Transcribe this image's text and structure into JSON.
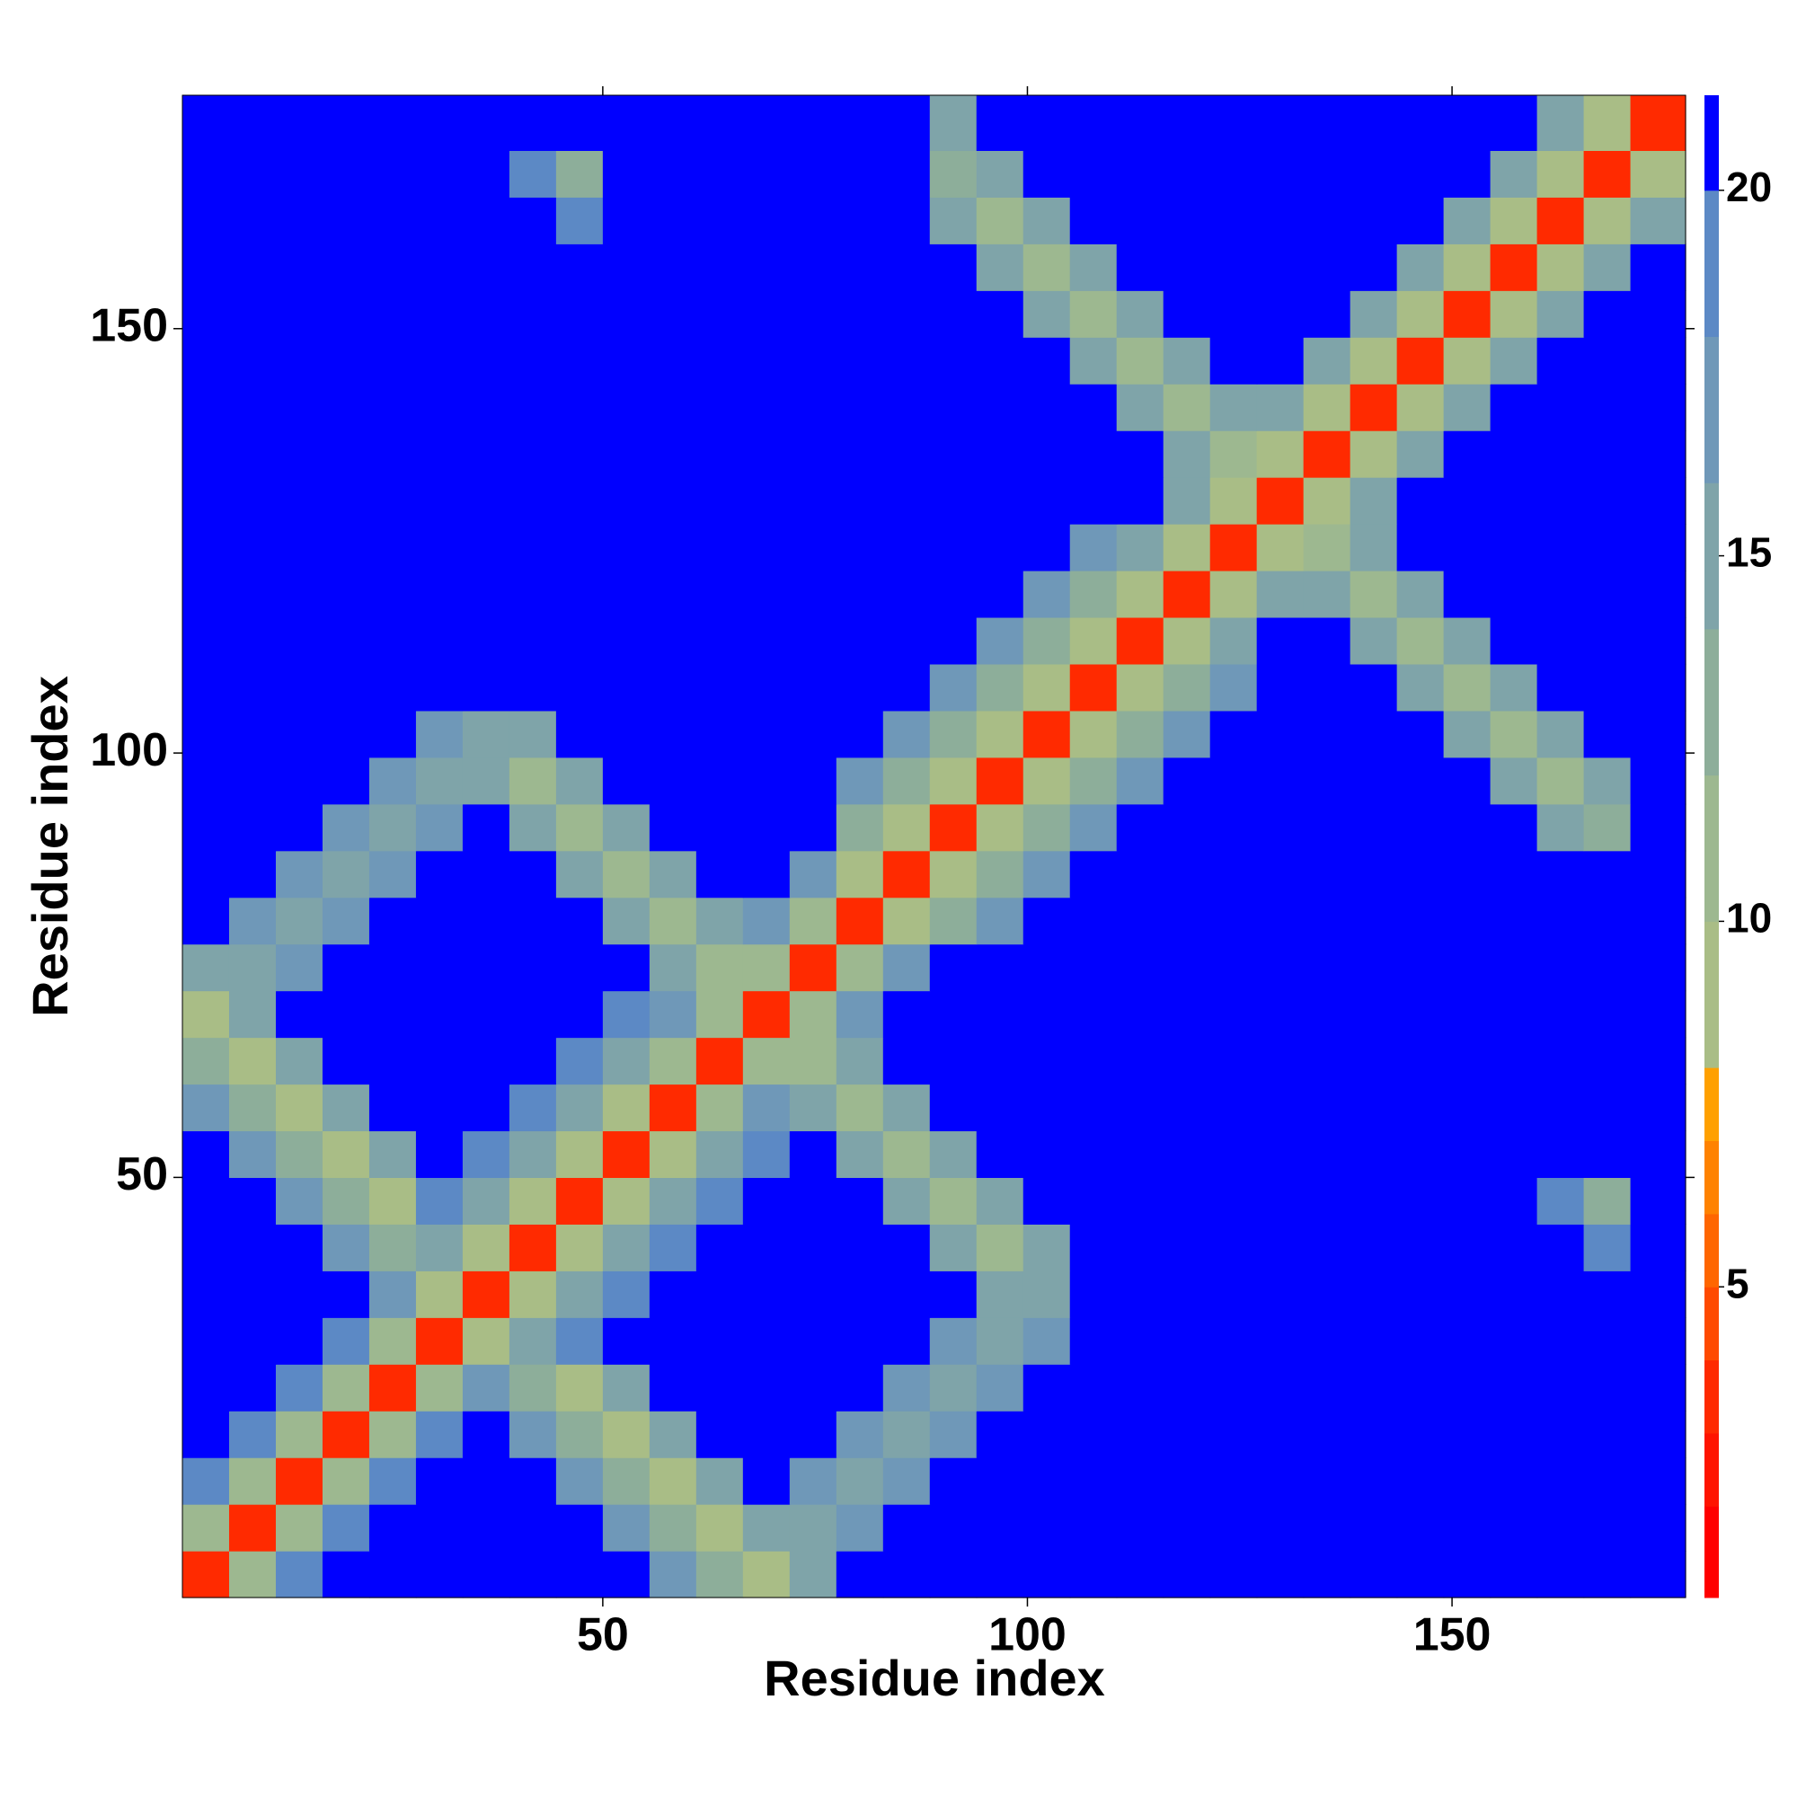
{
  "chart_data": {
    "type": "heatmap",
    "xlabel": "Residue index",
    "ylabel": "Residue index",
    "x_bins": [
      0.5,
      6,
      11.5,
      17,
      22.5,
      28,
      33.5,
      39,
      44.5,
      50,
      55.5,
      61,
      66.5,
      72,
      77.5,
      83,
      88.5,
      94,
      99.5,
      105,
      110.5,
      116,
      121.5,
      127,
      132.5,
      138,
      143.5,
      149,
      154.5,
      160,
      165.5,
      171,
      177.5
    ],
    "y_bins": [
      0.5,
      6,
      11.5,
      17,
      22.5,
      28,
      33.5,
      39,
      44.5,
      50,
      55.5,
      61,
      66.5,
      72,
      77.5,
      83,
      88.5,
      94,
      99.5,
      105,
      110.5,
      116,
      121.5,
      127,
      132.5,
      138,
      143.5,
      149,
      154.5,
      160,
      165.5,
      171,
      177.5
    ],
    "z": [
      [
        3,
        11,
        18,
        21,
        21,
        21,
        21,
        21,
        21,
        21,
        16,
        12,
        8,
        14,
        21,
        21,
        21,
        21,
        21,
        21,
        21,
        21,
        21,
        21,
        21,
        21,
        21,
        21,
        21,
        21,
        21,
        21
      ],
      [
        11,
        3,
        11,
        18,
        21,
        21,
        21,
        21,
        21,
        16,
        12,
        8,
        14,
        14,
        17,
        21,
        21,
        21,
        21,
        21,
        21,
        21,
        21,
        21,
        21,
        21,
        21,
        21,
        21,
        21,
        21,
        21
      ],
      [
        18,
        11,
        3,
        11,
        18,
        21,
        21,
        21,
        16,
        12,
        8,
        14,
        21,
        17,
        14,
        17,
        21,
        21,
        21,
        21,
        21,
        21,
        21,
        21,
        21,
        21,
        21,
        21,
        21,
        21,
        21,
        21
      ],
      [
        21,
        18,
        11,
        3,
        11,
        18,
        21,
        16,
        12,
        8,
        14,
        21,
        21,
        21,
        17,
        14,
        17,
        21,
        21,
        21,
        21,
        21,
        21,
        21,
        21,
        21,
        21,
        21,
        21,
        21,
        21,
        21
      ],
      [
        21,
        21,
        18,
        11,
        3,
        11,
        16,
        12,
        8,
        14,
        21,
        21,
        21,
        21,
        21,
        17,
        14,
        17,
        21,
        21,
        21,
        21,
        21,
        21,
        21,
        21,
        21,
        21,
        21,
        21,
        21,
        21
      ],
      [
        21,
        21,
        21,
        18,
        11,
        3,
        9,
        14,
        19,
        21,
        21,
        21,
        21,
        21,
        21,
        21,
        17,
        14,
        17,
        21,
        21,
        21,
        21,
        21,
        21,
        21,
        21,
        21,
        21,
        21,
        21,
        21
      ],
      [
        21,
        21,
        21,
        21,
        16,
        9,
        3,
        9,
        14,
        19,
        21,
        21,
        21,
        21,
        21,
        21,
        21,
        15,
        14,
        21,
        21,
        21,
        21,
        21,
        21,
        21,
        21,
        21,
        21,
        21,
        21,
        21
      ],
      [
        21,
        21,
        21,
        16,
        12,
        14,
        9,
        3,
        9,
        14,
        19,
        21,
        21,
        21,
        21,
        21,
        15,
        11,
        15,
        21,
        21,
        21,
        21,
        21,
        21,
        21,
        21,
        21,
        21,
        21,
        18,
        21
      ],
      [
        21,
        21,
        16,
        12,
        8,
        19,
        14,
        9,
        3,
        9,
        14,
        19,
        21,
        21,
        21,
        15,
        11,
        15,
        21,
        21,
        21,
        21,
        21,
        21,
        21,
        21,
        21,
        21,
        21,
        18,
        13,
        21
      ],
      [
        21,
        16,
        12,
        8,
        14,
        21,
        19,
        14,
        9,
        3,
        9,
        14,
        19,
        21,
        15,
        11,
        15,
        21,
        21,
        21,
        21,
        21,
        21,
        21,
        21,
        21,
        21,
        21,
        21,
        21,
        21,
        21
      ],
      [
        16,
        12,
        8,
        14,
        21,
        21,
        21,
        19,
        14,
        9,
        3,
        10,
        16,
        15,
        11,
        15,
        21,
        21,
        21,
        21,
        21,
        21,
        21,
        21,
        21,
        21,
        21,
        21,
        21,
        21,
        21,
        21
      ],
      [
        12,
        8,
        14,
        21,
        21,
        21,
        21,
        21,
        19,
        14,
        10,
        3,
        10,
        11,
        15,
        21,
        21,
        21,
        21,
        21,
        21,
        21,
        21,
        21,
        21,
        21,
        21,
        21,
        21,
        21,
        21,
        21
      ],
      [
        8,
        14,
        21,
        21,
        21,
        21,
        21,
        21,
        21,
        19,
        16,
        10,
        3,
        10,
        16,
        21,
        21,
        21,
        21,
        21,
        21,
        21,
        21,
        21,
        21,
        21,
        21,
        21,
        21,
        21,
        21,
        21
      ],
      [
        14,
        14,
        17,
        21,
        21,
        21,
        21,
        21,
        21,
        21,
        15,
        11,
        10,
        3,
        10,
        16,
        21,
        21,
        21,
        21,
        21,
        21,
        21,
        21,
        21,
        21,
        21,
        21,
        21,
        21,
        21,
        21
      ],
      [
        21,
        17,
        14,
        17,
        21,
        21,
        21,
        21,
        21,
        15,
        11,
        15,
        16,
        10,
        3,
        8,
        12,
        16,
        20,
        21,
        21,
        21,
        21,
        21,
        21,
        21,
        21,
        21,
        21,
        21,
        21,
        21
      ],
      [
        21,
        21,
        17,
        14,
        17,
        21,
        21,
        21,
        15,
        11,
        15,
        21,
        21,
        16,
        8,
        3,
        8,
        12,
        16,
        20,
        21,
        21,
        21,
        21,
        21,
        21,
        21,
        21,
        21,
        21,
        21,
        21
      ],
      [
        21,
        21,
        21,
        17,
        14,
        17,
        21,
        15,
        11,
        15,
        21,
        21,
        21,
        21,
        12,
        8,
        3,
        8,
        12,
        16,
        20,
        21,
        21,
        21,
        21,
        21,
        21,
        21,
        21,
        15,
        13,
        21
      ],
      [
        21,
        21,
        21,
        21,
        17,
        14,
        15,
        11,
        15,
        21,
        21,
        21,
        21,
        21,
        16,
        12,
        8,
        3,
        8,
        12,
        16,
        20,
        21,
        21,
        21,
        21,
        21,
        21,
        15,
        10,
        15,
        21
      ],
      [
        21,
        21,
        21,
        21,
        21,
        17,
        14,
        15,
        21,
        21,
        21,
        21,
        21,
        21,
        20,
        16,
        12,
        8,
        3,
        8,
        12,
        16,
        20,
        21,
        21,
        21,
        21,
        15,
        10,
        15,
        21,
        21
      ],
      [
        21,
        21,
        21,
        21,
        21,
        21,
        21,
        21,
        21,
        21,
        21,
        21,
        21,
        21,
        21,
        20,
        16,
        12,
        8,
        3,
        8,
        12,
        16,
        20,
        21,
        21,
        15,
        10,
        15,
        21,
        21,
        21
      ],
      [
        21,
        21,
        21,
        21,
        21,
        21,
        21,
        21,
        21,
        21,
        21,
        21,
        21,
        21,
        21,
        21,
        20,
        16,
        12,
        8,
        3,
        9,
        15,
        20,
        21,
        15,
        10,
        15,
        21,
        21,
        21,
        21
      ],
      [
        21,
        21,
        21,
        21,
        21,
        21,
        21,
        21,
        21,
        21,
        21,
        21,
        21,
        21,
        21,
        21,
        21,
        20,
        16,
        12,
        9,
        3,
        9,
        15,
        15,
        10,
        15,
        21,
        21,
        21,
        21,
        21
      ],
      [
        21,
        21,
        21,
        21,
        21,
        21,
        21,
        21,
        21,
        21,
        21,
        21,
        21,
        21,
        21,
        21,
        21,
        21,
        20,
        16,
        15,
        9,
        3,
        9,
        10,
        15,
        21,
        21,
        21,
        21,
        21,
        21
      ],
      [
        21,
        21,
        21,
        21,
        21,
        21,
        21,
        21,
        21,
        21,
        21,
        21,
        21,
        21,
        21,
        21,
        21,
        21,
        21,
        20,
        20,
        15,
        9,
        3,
        9,
        15,
        20,
        21,
        21,
        21,
        21,
        21
      ],
      [
        21,
        21,
        21,
        21,
        21,
        21,
        21,
        21,
        21,
        21,
        21,
        21,
        21,
        21,
        21,
        21,
        21,
        21,
        21,
        21,
        21,
        15,
        10,
        9,
        3,
        9,
        15,
        20,
        21,
        21,
        21,
        21
      ],
      [
        21,
        21,
        21,
        21,
        21,
        21,
        21,
        21,
        21,
        21,
        21,
        21,
        21,
        21,
        21,
        21,
        21,
        21,
        21,
        21,
        15,
        10,
        15,
        15,
        9,
        3,
        9,
        15,
        20,
        21,
        21,
        21
      ],
      [
        21,
        21,
        21,
        21,
        21,
        21,
        21,
        21,
        21,
        21,
        21,
        21,
        21,
        21,
        21,
        21,
        21,
        21,
        21,
        15,
        10,
        15,
        21,
        20,
        15,
        9,
        3,
        9,
        15,
        21,
        21,
        21
      ],
      [
        21,
        21,
        21,
        21,
        21,
        21,
        21,
        21,
        21,
        21,
        21,
        21,
        21,
        21,
        21,
        21,
        21,
        21,
        15,
        10,
        15,
        21,
        21,
        21,
        20,
        15,
        9,
        3,
        9,
        15,
        21,
        21
      ],
      [
        21,
        21,
        21,
        21,
        21,
        21,
        21,
        21,
        21,
        21,
        21,
        21,
        21,
        21,
        21,
        21,
        21,
        15,
        10,
        15,
        21,
        21,
        21,
        21,
        21,
        20,
        15,
        9,
        3,
        9,
        15,
        21
      ],
      [
        21,
        21,
        21,
        21,
        21,
        21,
        21,
        21,
        18,
        21,
        21,
        21,
        21,
        21,
        21,
        21,
        15,
        10,
        15,
        21,
        21,
        21,
        21,
        21,
        21,
        21,
        21,
        15,
        9,
        3,
        9,
        15
      ],
      [
        21,
        21,
        21,
        21,
        21,
        21,
        21,
        18,
        13,
        21,
        21,
        21,
        21,
        21,
        21,
        21,
        13,
        15,
        21,
        21,
        21,
        21,
        21,
        21,
        21,
        21,
        21,
        21,
        15,
        9,
        3,
        9
      ],
      [
        21,
        21,
        21,
        21,
        21,
        21,
        21,
        21,
        21,
        21,
        21,
        21,
        21,
        21,
        21,
        21,
        15,
        21,
        21,
        21,
        21,
        21,
        21,
        21,
        21,
        21,
        21,
        21,
        21,
        15,
        9,
        3
      ]
    ],
    "xlim": [
      0.5,
      177.5
    ],
    "ylim": [
      0.5,
      177.5
    ],
    "xticks": [
      50,
      100,
      150
    ],
    "yticks": [
      50,
      100,
      150
    ],
    "colorbar": {
      "levels": [
        0.75,
        2,
        3,
        4,
        5,
        6,
        7,
        8,
        10,
        12,
        14,
        16,
        18,
        20,
        21.3
      ],
      "colors": [
        "#ff0000",
        "#ff1400",
        "#ff2a00",
        "#ff4a00",
        "#ff6600",
        "#ff8200",
        "#ffa000",
        "#a9bd86",
        "#9db890",
        "#8dae9a",
        "#7fa4a9",
        "#6f98b8",
        "#5c89c5",
        "#0000ff"
      ],
      "ticks": [
        5,
        10,
        15,
        20
      ]
    }
  }
}
